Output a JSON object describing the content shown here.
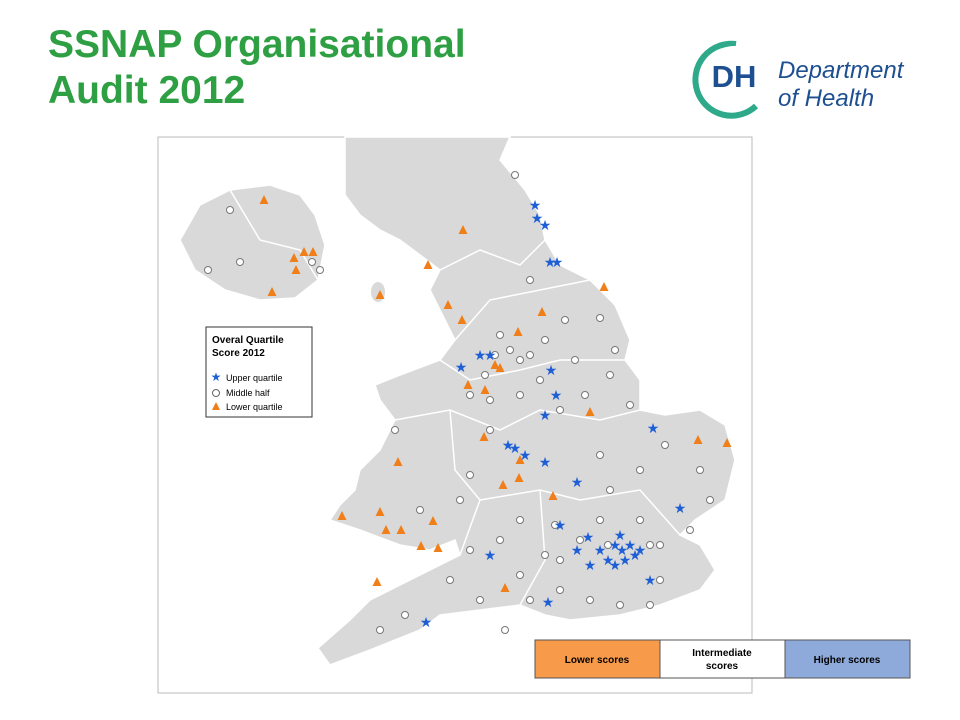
{
  "header": {
    "title_lines": [
      "SSNAP Organisational",
      "Audit 2012"
    ]
  },
  "logo": {
    "mark": "DH",
    "lines": [
      "Department",
      "of Health"
    ]
  },
  "map_legend": {
    "title_lines": [
      "Overal Quartile",
      "Score 2012"
    ],
    "items": [
      "Upper quartile",
      "Middle half",
      "Lower quartile"
    ]
  },
  "score_key": {
    "lower": "Lower scores",
    "intermediate": [
      "Intermediate",
      "scores"
    ],
    "higher": "Higher scores"
  }
}
